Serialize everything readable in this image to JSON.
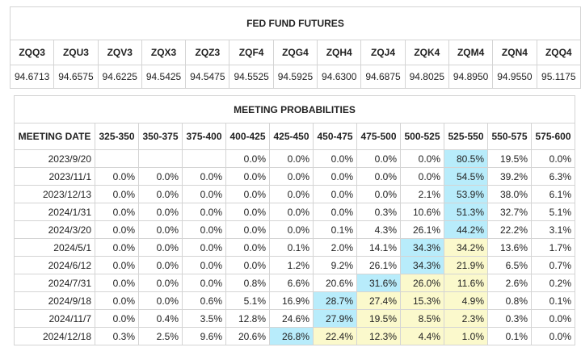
{
  "futures": {
    "title": "FED FUND FUTURES",
    "headers": [
      "ZQQ3",
      "ZQU3",
      "ZQV3",
      "ZQX3",
      "ZQZ3",
      "ZQF4",
      "ZQG4",
      "ZQH4",
      "ZQJ4",
      "ZQK4",
      "ZQM4",
      "ZQN4",
      "ZQQ4"
    ],
    "values": [
      "94.6713",
      "94.6575",
      "94.6225",
      "94.5425",
      "94.5475",
      "94.5525",
      "94.5925",
      "94.6300",
      "94.6875",
      "94.8025",
      "94.8950",
      "94.9550",
      "95.1175"
    ]
  },
  "probabilities": {
    "title": "MEETING PROBABILITIES",
    "headers": [
      "MEETING DATE",
      "325-350",
      "350-375",
      "375-400",
      "400-425",
      "425-450",
      "450-475",
      "475-500",
      "500-525",
      "525-550",
      "550-575",
      "575-600"
    ],
    "rows": [
      [
        "2023/9/20",
        null,
        null,
        null,
        "0.0%",
        "0.0%",
        "0.0%",
        "0.0%",
        "0.0%",
        "80.5%",
        "19.5%",
        "0.0%"
      ],
      [
        "2023/11/1",
        "0.0%",
        "0.0%",
        "0.0%",
        "0.0%",
        "0.0%",
        "0.0%",
        "0.0%",
        "0.0%",
        "54.5%",
        "39.2%",
        "6.3%"
      ],
      [
        "2023/12/13",
        "0.0%",
        "0.0%",
        "0.0%",
        "0.0%",
        "0.0%",
        "0.0%",
        "0.0%",
        "2.1%",
        "53.9%",
        "38.0%",
        "6.1%"
      ],
      [
        "2024/1/31",
        "0.0%",
        "0.0%",
        "0.0%",
        "0.0%",
        "0.0%",
        "0.0%",
        "0.3%",
        "10.6%",
        "51.3%",
        "32.7%",
        "5.1%"
      ],
      [
        "2024/3/20",
        "0.0%",
        "0.0%",
        "0.0%",
        "0.0%",
        "0.0%",
        "0.1%",
        "4.3%",
        "26.1%",
        "44.2%",
        "22.2%",
        "3.1%"
      ],
      [
        "2024/5/1",
        "0.0%",
        "0.0%",
        "0.0%",
        "0.0%",
        "0.1%",
        "2.0%",
        "14.1%",
        "34.3%",
        "34.2%",
        "13.6%",
        "1.7%"
      ],
      [
        "2024/6/12",
        "0.0%",
        "0.0%",
        "0.0%",
        "0.0%",
        "1.2%",
        "9.2%",
        "26.1%",
        "34.3%",
        "21.9%",
        "6.5%",
        "0.7%"
      ],
      [
        "2024/7/31",
        "0.0%",
        "0.0%",
        "0.0%",
        "0.8%",
        "6.6%",
        "20.6%",
        "31.6%",
        "26.0%",
        "11.6%",
        "2.6%",
        "0.2%"
      ],
      [
        "2024/9/18",
        "0.0%",
        "0.0%",
        "0.6%",
        "5.1%",
        "16.9%",
        "28.7%",
        "27.4%",
        "15.3%",
        "4.9%",
        "0.8%",
        "0.1%"
      ],
      [
        "2024/11/7",
        "0.0%",
        "0.4%",
        "3.5%",
        "12.8%",
        "24.6%",
        "27.9%",
        "19.5%",
        "8.5%",
        "2.3%",
        "0.3%",
        "0.0%"
      ],
      [
        "2024/12/18",
        "0.3%",
        "2.5%",
        "9.6%",
        "20.6%",
        "26.8%",
        "22.4%",
        "12.3%",
        "4.4%",
        "1.0%",
        "0.1%",
        "0.0%"
      ]
    ]
  }
}
